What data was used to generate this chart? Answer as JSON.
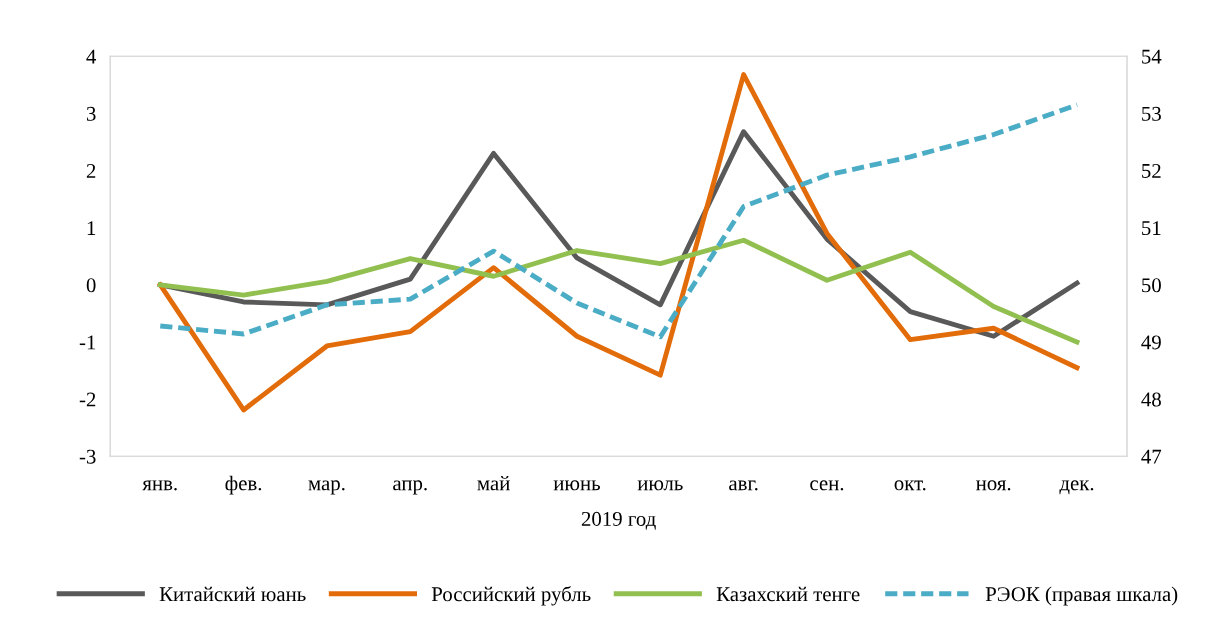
{
  "chart_data": {
    "type": "line",
    "xlabel": "2019 год",
    "categories": [
      "янв.",
      "фев.",
      "мар.",
      "апр.",
      "май",
      "июнь",
      "июль",
      "авг.",
      "сен.",
      "окт.",
      "ноя.",
      "дек."
    ],
    "series": [
      {
        "name": "Китайский юань",
        "color": "#595959",
        "values": [
          0,
          -0.3,
          -0.35,
          0.1,
          2.3,
          0.47,
          -0.35,
          2.68,
          0.8,
          -0.47,
          -0.9,
          0.03
        ]
      },
      {
        "name": "Российский рубль",
        "color": "#e36c0a",
        "values": [
          0,
          -2.19,
          -1.07,
          -0.82,
          0.3,
          -0.9,
          -1.58,
          3.68,
          0.9,
          -0.96,
          -0.76,
          -1.45
        ]
      },
      {
        "name": "Казахский тенге",
        "color": "#92c050",
        "values": [
          0,
          -0.18,
          0.06,
          0.46,
          0.15,
          0.6,
          0.37,
          0.78,
          0.08,
          0.57,
          -0.38,
          -1.0
        ]
      },
      {
        "name": "РЭОК (правая шкала)",
        "color": "#4bacc6",
        "axis": "y2",
        "line_style": "dashed",
        "values": [
          49.28,
          49.14,
          49.65,
          49.75,
          50.59,
          49.68,
          49.09,
          51.37,
          51.92,
          52.24,
          52.63,
          53.15
        ]
      }
    ],
    "ylim": [
      -3,
      4
    ],
    "yticks": [
      {
        "value": -3,
        "label": "-3"
      },
      {
        "value": -2,
        "label": "-2"
      },
      {
        "value": -1,
        "label": "-1"
      },
      0,
      1,
      2,
      3,
      4
    ],
    "y2lim": [
      47,
      54
    ],
    "y2ticks": [
      47,
      48,
      49,
      50,
      51,
      52,
      53,
      54
    ],
    "grid": false,
    "legend": "bottom",
    "marker": "none"
  }
}
